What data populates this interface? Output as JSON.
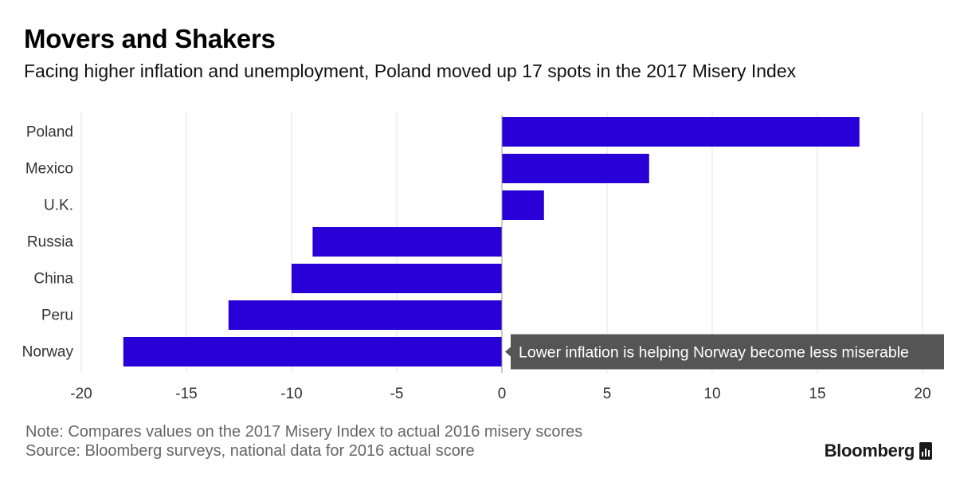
{
  "header": {
    "title": "Movers and Shakers",
    "subtitle": "Facing higher inflation and unemployment, Poland moved up 17 spots in the 2017 Misery Index"
  },
  "chart_data": {
    "type": "bar",
    "orientation": "horizontal",
    "categories": [
      "Poland",
      "Mexico",
      "U.K.",
      "Russia",
      "China",
      "Peru",
      "Norway"
    ],
    "values": [
      17,
      7,
      2,
      -9,
      -10,
      -13,
      -18
    ],
    "xlim": [
      -20,
      20
    ],
    "xticks": [
      "-20",
      "-15",
      "-10",
      "-5",
      "0",
      "5",
      "10",
      "15",
      "20"
    ],
    "grid": true,
    "bar_color": "#2800d7",
    "annotation": {
      "category": "Norway",
      "text": "Lower inflation is helping Norway become less miserable"
    }
  },
  "footer": {
    "note": "Note: Compares values on the 2017 Misery Index to actual 2016 misery scores",
    "source": "Source: Bloomberg surveys, national data for 2016 actual score",
    "brand": "Bloomberg"
  }
}
